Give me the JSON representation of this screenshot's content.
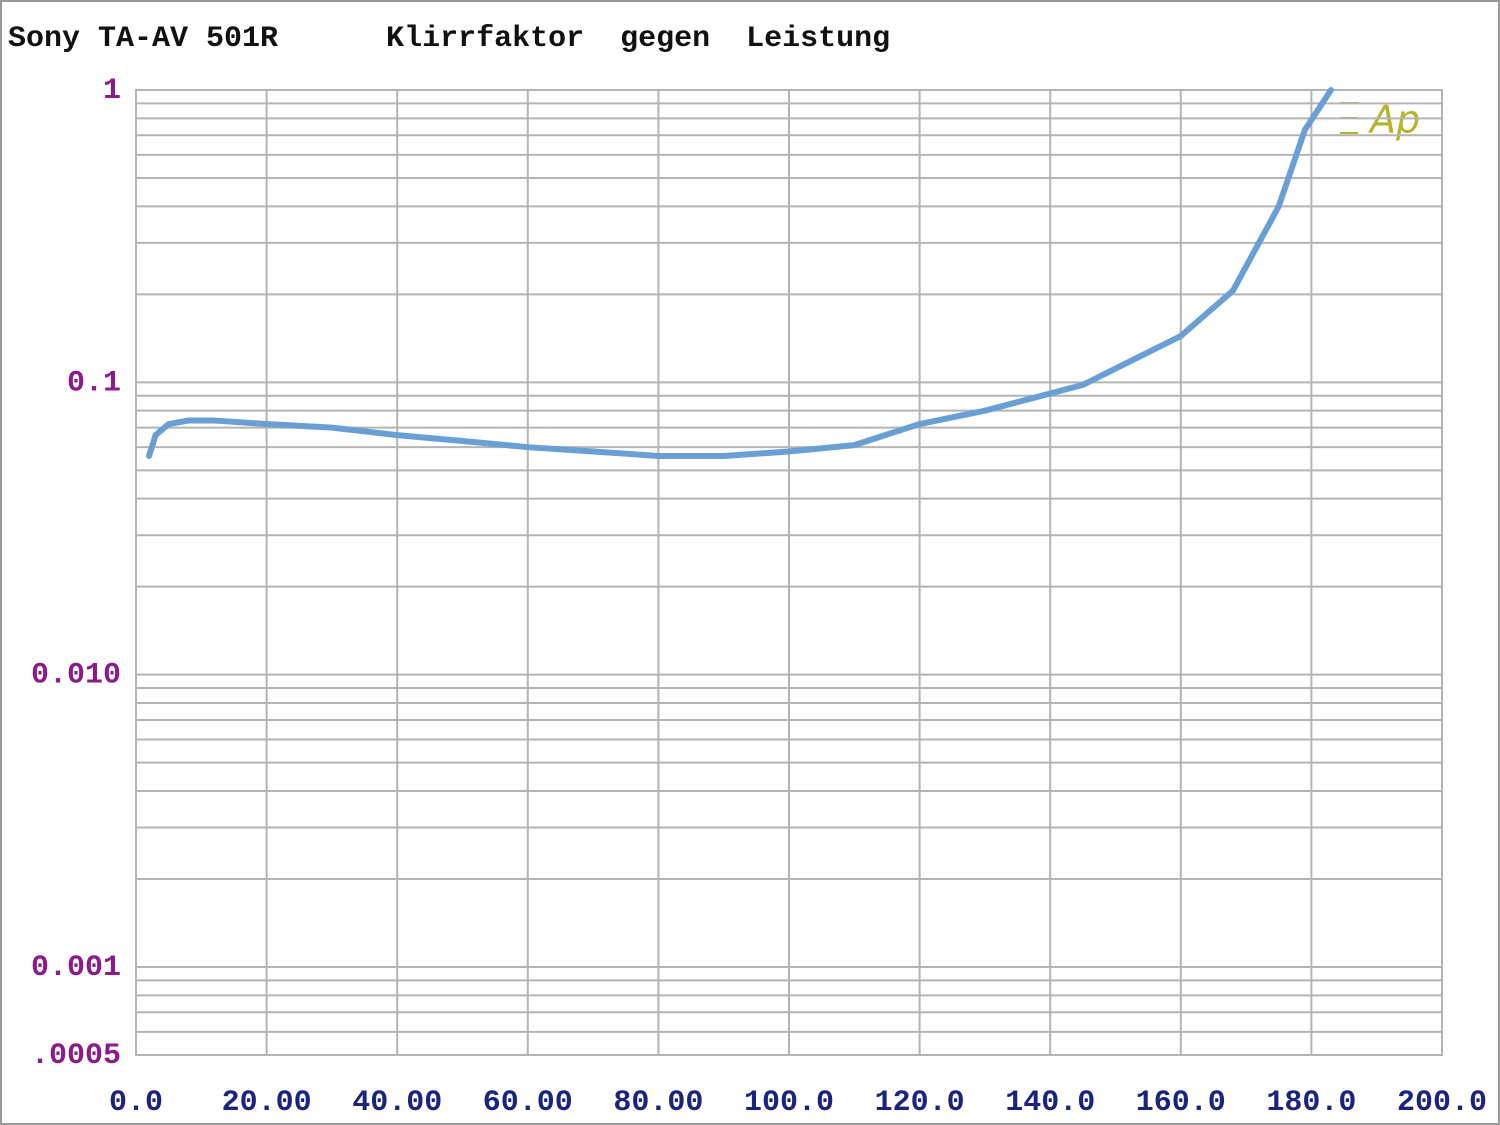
{
  "chart_data": {
    "type": "line",
    "title": "Sony TA-AV 501R      Klirrfaktor  gegen  Leistung",
    "logo": "Ap",
    "x": [
      2,
      3,
      5,
      8,
      12,
      20,
      30,
      40,
      50,
      60,
      70,
      80,
      90,
      100,
      110,
      120,
      130,
      145,
      160,
      168,
      175,
      179,
      183
    ],
    "series": [
      {
        "color": "#6a9fd6",
        "values": [
          0.056,
          0.066,
          0.072,
          0.074,
          0.074,
          0.072,
          0.07,
          0.066,
          0.063,
          0.06,
          0.058,
          0.056,
          0.056,
          0.058,
          0.061,
          0.072,
          0.08,
          0.098,
          0.144,
          0.206,
          0.4,
          0.73,
          1.0
        ]
      }
    ],
    "xlim": [
      0,
      200
    ],
    "xticks": [
      {
        "value": 0,
        "label": "0.0"
      },
      {
        "value": 20,
        "label": "20.00"
      },
      {
        "value": 40,
        "label": "40.00"
      },
      {
        "value": 60,
        "label": "60.00"
      },
      {
        "value": 80,
        "label": "80.00"
      },
      {
        "value": 100,
        "label": "100.0"
      },
      {
        "value": 120,
        "label": "120.0"
      },
      {
        "value": 140,
        "label": "140.0"
      },
      {
        "value": 160,
        "label": "160.0"
      },
      {
        "value": 180,
        "label": "180.0"
      },
      {
        "value": 200,
        "label": "200.0"
      }
    ],
    "ylim": [
      0.0005,
      1
    ],
    "yticks": [
      {
        "value": 0.0005,
        "label": ".0005"
      },
      0.001,
      {
        "value": 0.01,
        "label": "0.010"
      },
      0.1,
      1
    ],
    "log_y": true,
    "grid": true
  }
}
